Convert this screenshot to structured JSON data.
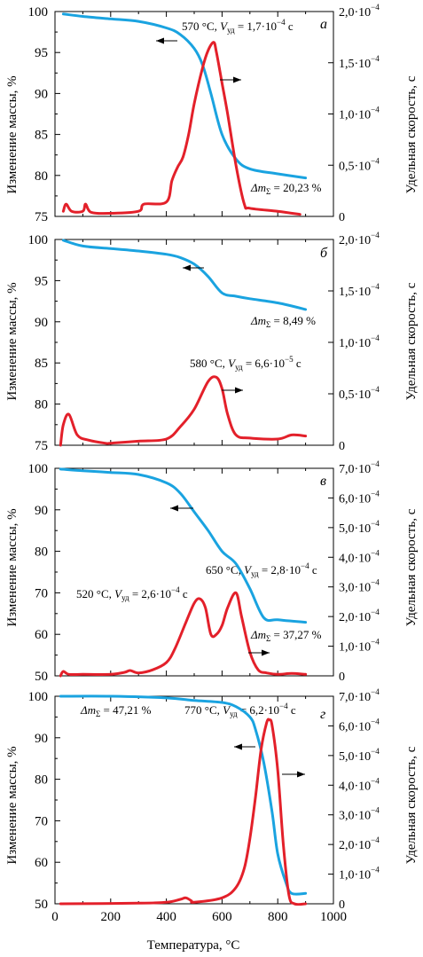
{
  "colors": {
    "mass": "#1aa3e0",
    "rate": "#e3202a",
    "axes": "#000000"
  },
  "chart_data": [
    {
      "type": "line",
      "panel_letter": "а",
      "xlim": [
        0,
        1000
      ],
      "ylim": [
        75,
        100
      ],
      "y2lim": [
        0,
        2.0
      ],
      "left_ticks": [
        "100",
        "95",
        "90",
        "85",
        "80",
        "75"
      ],
      "right_ticks": [
        "2,0·10",
        "1,5·10",
        "1,0·10",
        "0,5·10",
        "0"
      ],
      "ylabel": "Изменение массы, %",
      "y2label": "Удельная скорость, с",
      "annotations": {
        "peak_temp": "570 °C,",
        "peak_v": "V",
        "peak_v_sub": "уд",
        "peak_val": " = 1,7·10",
        "peak_exp": "−4",
        "peak_unit": " с",
        "total_delta": "Δm",
        "total_sub": "Σ",
        "total_val": " = 20,23 %"
      },
      "series": [
        {
          "axis": "left",
          "x": [
            30,
            100,
            200,
            300,
            400,
            450,
            500,
            530,
            560,
            600,
            650,
            700,
            800,
            900
          ],
          "y": [
            99.7,
            99.4,
            99.1,
            98.8,
            98.0,
            97.2,
            95.5,
            93.5,
            90.0,
            85.0,
            82.0,
            80.8,
            80.2,
            79.7
          ]
        },
        {
          "axis": "right",
          "x": [
            30,
            40,
            60,
            100,
            110,
            130,
            200,
            300,
            320,
            400,
            420,
            440,
            460,
            480,
            500,
            530,
            550,
            570,
            580,
            600,
            620,
            650,
            680,
            700,
            800,
            880
          ],
          "y": [
            0.05,
            0.12,
            0.05,
            0.05,
            0.12,
            0.04,
            0.03,
            0.05,
            0.12,
            0.14,
            0.35,
            0.48,
            0.58,
            0.8,
            1.1,
            1.45,
            1.62,
            1.7,
            1.6,
            1.3,
            1.0,
            0.5,
            0.12,
            0.08,
            0.05,
            0.02
          ]
        }
      ]
    },
    {
      "type": "line",
      "panel_letter": "б",
      "xlim": [
        0,
        1000
      ],
      "ylim": [
        75,
        100
      ],
      "y2lim": [
        0,
        2.0
      ],
      "left_ticks": [
        "100",
        "95",
        "90",
        "85",
        "80",
        "75"
      ],
      "right_ticks": [
        "2,0·10",
        "1,5·10",
        "1,0·10",
        "0,5·10",
        "0"
      ],
      "ylabel": "Изменение массы, %",
      "y2label": "Удельная скорость, с",
      "annotations": {
        "peak_temp": "580 °C,",
        "peak_v": "V",
        "peak_v_sub": "уд",
        "peak_val": " = 6,6·10",
        "peak_exp": "−5",
        "peak_unit": " с",
        "total_delta": "Δm",
        "total_sub": "Σ",
        "total_val": " = 8,49 %"
      },
      "series": [
        {
          "axis": "left",
          "x": [
            30,
            100,
            200,
            300,
            400,
            450,
            500,
            550,
            600,
            650,
            700,
            800,
            900
          ],
          "y": [
            99.9,
            99.2,
            98.9,
            98.6,
            98.2,
            97.8,
            97.0,
            95.5,
            93.5,
            93.1,
            92.8,
            92.3,
            91.5
          ]
        },
        {
          "axis": "right",
          "x": [
            20,
            30,
            50,
            80,
            120,
            180,
            200,
            300,
            400,
            450,
            500,
            550,
            580,
            600,
            620,
            650,
            700,
            800,
            850,
            900
          ],
          "y": [
            0.0,
            0.2,
            0.3,
            0.1,
            0.05,
            0.02,
            0.02,
            0.04,
            0.06,
            0.18,
            0.35,
            0.62,
            0.66,
            0.55,
            0.3,
            0.1,
            0.07,
            0.06,
            0.1,
            0.09
          ]
        }
      ]
    },
    {
      "type": "line",
      "panel_letter": "в",
      "xlim": [
        0,
        1000
      ],
      "ylim": [
        50,
        100
      ],
      "y2lim": [
        0,
        7.0
      ],
      "left_ticks": [
        "100",
        "90",
        "80",
        "70",
        "60",
        "50"
      ],
      "right_ticks": [
        "7,0·10",
        "6,0·10",
        "5,0·10",
        "4,0·10",
        "3,0·10",
        "2,0·10",
        "1,0·10",
        "0"
      ],
      "ylabel": "Изменение массы, %",
      "y2label": "Удельная скорость, с",
      "annotations": {
        "peak1_temp": "520 °C,",
        "peak1_v": "V",
        "peak1_v_sub": "уд",
        "peak1_val": " = 2,6·10",
        "peak1_exp": "−4",
        "peak1_unit": " с",
        "peak2_temp": "650 °C,",
        "peak2_v": "V",
        "peak2_v_sub": "уд",
        "peak2_val": " = 2,8·10",
        "peak2_exp": "−4",
        "peak2_unit": " с",
        "total_delta": "Δm",
        "total_sub": "Σ",
        "total_val": " = 37,27 %"
      },
      "series": [
        {
          "axis": "left",
          "x": [
            20,
            100,
            200,
            300,
            400,
            450,
            500,
            550,
            600,
            650,
            700,
            750,
            800,
            900
          ],
          "y": [
            99.8,
            99.4,
            99.0,
            98.5,
            96.5,
            94.0,
            89.5,
            85.0,
            80.0,
            77.0,
            71.0,
            64.0,
            63.5,
            62.9
          ]
        },
        {
          "axis": "right",
          "x": [
            20,
            30,
            50,
            100,
            200,
            250,
            270,
            300,
            350,
            400,
            430,
            470,
            500,
            520,
            540,
            560,
            580,
            600,
            620,
            650,
            670,
            700,
            730,
            760,
            800,
            850,
            900
          ],
          "y": [
            0.0,
            0.15,
            0.05,
            0.05,
            0.05,
            0.12,
            0.18,
            0.1,
            0.2,
            0.45,
            0.9,
            1.8,
            2.45,
            2.6,
            2.3,
            1.4,
            1.4,
            1.7,
            2.3,
            2.8,
            2.0,
            0.8,
            0.2,
            0.1,
            0.05,
            0.08,
            0.05
          ]
        }
      ]
    },
    {
      "type": "line",
      "panel_letter": "г",
      "xlim": [
        0,
        1000
      ],
      "ylim": [
        50,
        100
      ],
      "y2lim": [
        0,
        7.0
      ],
      "left_ticks": [
        "100",
        "90",
        "80",
        "70",
        "60",
        "50"
      ],
      "right_ticks": [
        "7,0·10",
        "6,0·10",
        "5,0·10",
        "4,0·10",
        "3,0·10",
        "2,0·10",
        "1,0·10",
        "0"
      ],
      "x_ticks": [
        "0",
        "200",
        "400",
        "600",
        "800",
        "1000"
      ],
      "xlabel": "Температура, °C",
      "ylabel": "Изменение массы, %",
      "y2label": "Удельная скорость, с",
      "annotations": {
        "peak_temp": "770 °C,",
        "peak_v": "V",
        "peak_v_sub": "уд",
        "peak_val": " = 6,2·10",
        "peak_exp": "−4",
        "peak_unit": " с",
        "total_delta": "Δm",
        "total_sub": "Σ",
        "total_val": " = 47,21 %"
      },
      "series": [
        {
          "axis": "left",
          "x": [
            20,
            200,
            400,
            500,
            600,
            650,
            700,
            720,
            750,
            780,
            800,
            830,
            850,
            900
          ],
          "y": [
            100,
            100,
            99.6,
            99.0,
            98.5,
            97.5,
            95.0,
            92.0,
            84.0,
            72.0,
            62.0,
            55.0,
            52.5,
            52.5
          ]
        },
        {
          "axis": "right",
          "x": [
            20,
            300,
            400,
            450,
            470,
            490,
            500,
            600,
            650,
            680,
            700,
            720,
            740,
            760,
            770,
            780,
            800,
            820,
            840,
            860,
            900
          ],
          "y": [
            0.0,
            0.02,
            0.05,
            0.15,
            0.2,
            0.1,
            0.05,
            0.2,
            0.55,
            1.2,
            2.2,
            3.6,
            5.2,
            6.1,
            6.2,
            6.0,
            4.5,
            2.0,
            0.3,
            0.0,
            0.0
          ]
        }
      ]
    }
  ]
}
